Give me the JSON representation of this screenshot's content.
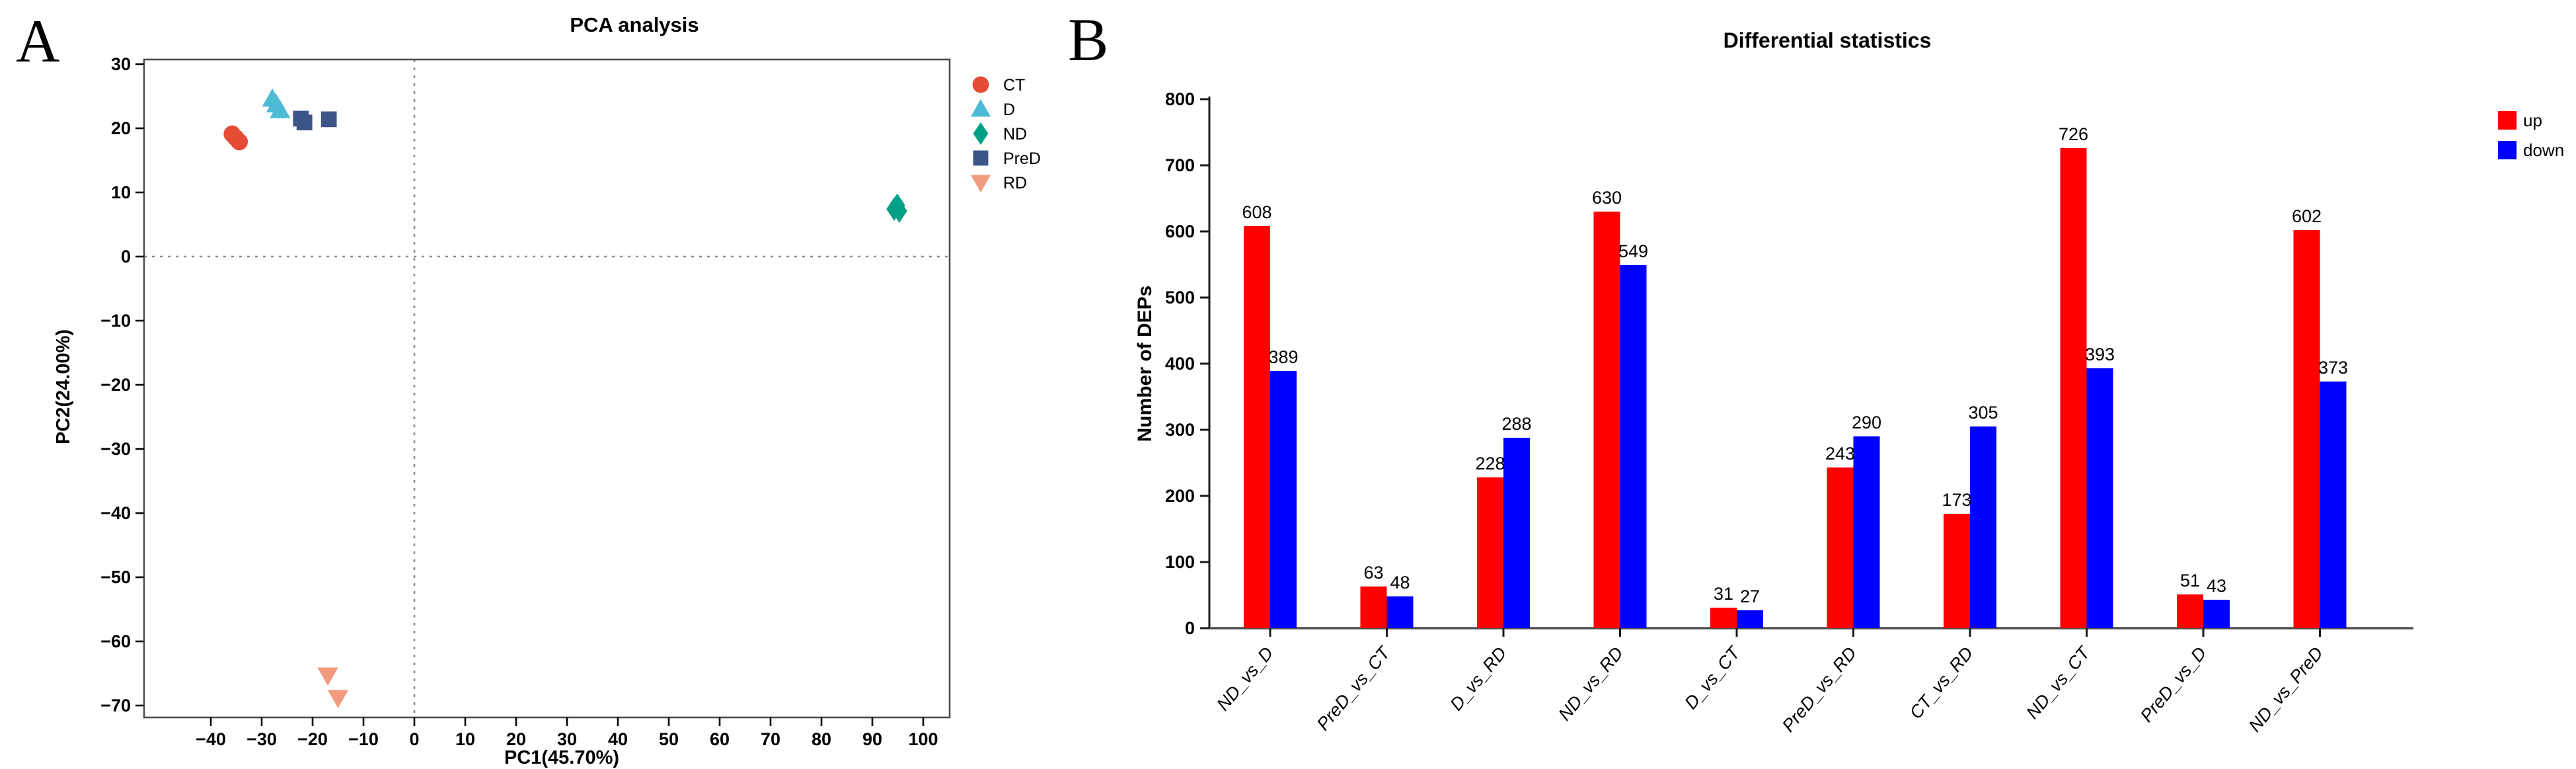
{
  "panel_a": {
    "label": "A"
  },
  "panel_b": {
    "label": "B"
  },
  "chart_data": [
    {
      "type": "scatter",
      "title": "PCA analysis",
      "xlabel": "PC1(45.70%)",
      "ylabel": "PC2(24.00%)",
      "xlim": [
        -53,
        105
      ],
      "ylim": [
        -72,
        31
      ],
      "x_ticks": [
        -40,
        -30,
        -20,
        -10,
        0,
        10,
        20,
        30,
        40,
        50,
        60,
        70,
        80,
        90,
        100
      ],
      "y_ticks": [
        30,
        20,
        10,
        0,
        -10,
        -20,
        -30,
        -40,
        -50,
        -60,
        -70
      ],
      "grid": false,
      "reference_lines": {
        "vertical_x": 0,
        "horizontal_y": 0,
        "style": "dashed",
        "color": "#8c8c8c"
      },
      "legend_position": "right-top-outside",
      "series": [
        {
          "name": "CT",
          "marker": "circle",
          "color": "#E64B35",
          "points": [
            [
              -35.8,
              19.1
            ],
            [
              -35.1,
              18.5
            ],
            [
              -34.4,
              17.9
            ]
          ]
        },
        {
          "name": "D",
          "marker": "triangle-up",
          "color": "#4DBBD5",
          "points": [
            [
              -27.9,
              24.6
            ],
            [
              -27.1,
              23.7
            ],
            [
              -26.4,
              22.8
            ]
          ]
        },
        {
          "name": "ND",
          "marker": "diamond",
          "color": "#00A087",
          "points": [
            [
              94.3,
              7.4
            ],
            [
              94.9,
              8.0
            ],
            [
              95.3,
              7.1
            ]
          ]
        },
        {
          "name": "PreD",
          "marker": "square",
          "color": "#3C5488",
          "points": [
            [
              -22.3,
              21.5
            ],
            [
              -21.6,
              20.9
            ],
            [
              -16.8,
              21.4
            ]
          ]
        },
        {
          "name": "RD",
          "marker": "triangle-down",
          "color": "#F39B7F",
          "points": [
            [
              -17.0,
              -65.3
            ],
            [
              -15.0,
              -68.8
            ]
          ]
        }
      ]
    },
    {
      "type": "bar",
      "title": "Differential statistics",
      "xlabel": "",
      "ylabel": "Number of DEPs",
      "ylim": [
        0,
        800
      ],
      "y_ticks": [
        0,
        100,
        200,
        300,
        400,
        500,
        600,
        700,
        800
      ],
      "grid": false,
      "legend_position": "right-top-outside",
      "categories": [
        "ND_vs_D",
        "PreD_vs_CT",
        "D_vs_RD",
        "ND_vs_RD",
        "D_vs_CT",
        "PreD_vs_RD",
        "CT_vs_RD",
        "ND_vs_CT",
        "PreD_vs_D",
        "ND_vs_PreD"
      ],
      "series": [
        {
          "name": "up",
          "color": "#FF0000",
          "values": [
            608,
            63,
            228,
            630,
            31,
            243,
            173,
            726,
            51,
            602
          ]
        },
        {
          "name": "down",
          "color": "#0000FF",
          "values": [
            389,
            48,
            288,
            549,
            27,
            290,
            305,
            393,
            43,
            373
          ]
        }
      ]
    }
  ]
}
